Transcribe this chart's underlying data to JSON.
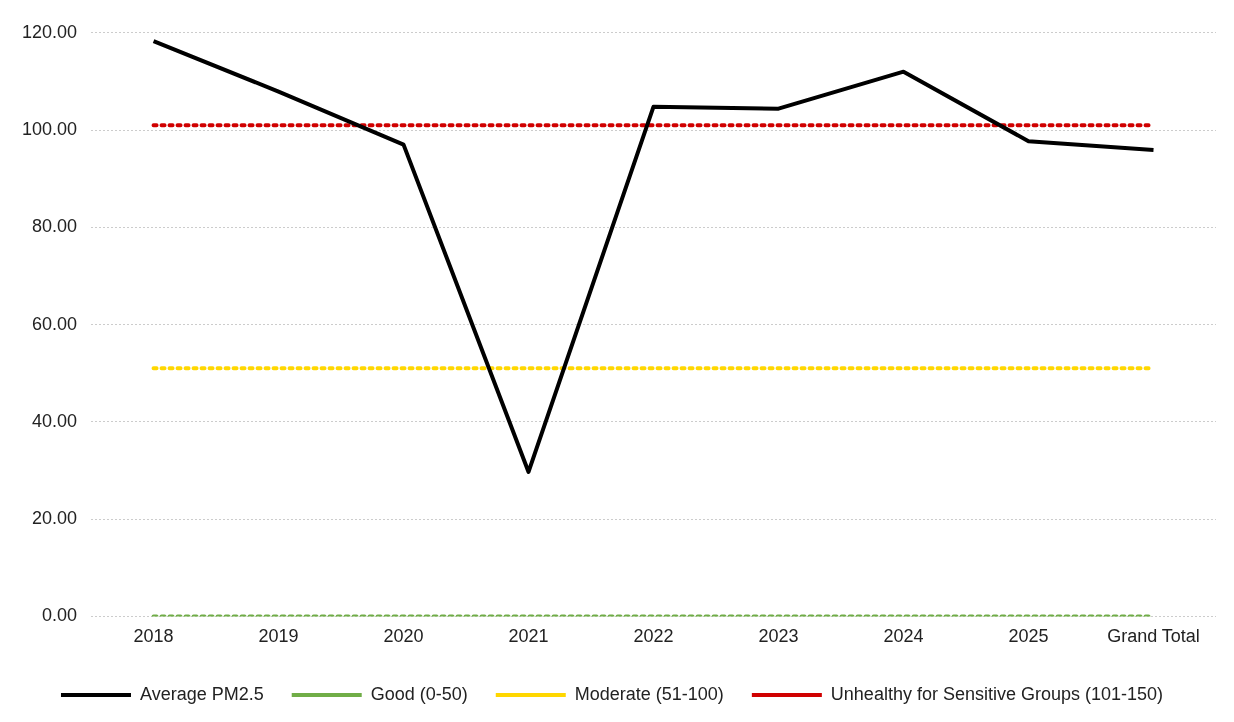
{
  "chart_data": {
    "type": "line",
    "categories": [
      "2018",
      "2019",
      "2020",
      "2021",
      "2022",
      "2023",
      "2024",
      "2025",
      "Grand Total"
    ],
    "series": [
      {
        "name": "Average PM2.5",
        "color": "#000000",
        "line_style": "solid",
        "values": [
          118.3,
          107.9,
          97.0,
          29.7,
          104.8,
          104.4,
          112.0,
          97.7,
          95.9
        ]
      },
      {
        "name": "Good (0-50)",
        "color": "#70ad47",
        "line_style": "dotted",
        "values": [
          0,
          0,
          0,
          0,
          0,
          0,
          0,
          0,
          0
        ]
      },
      {
        "name": "Moderate (51-100)",
        "color": "#ffd700",
        "line_style": "dotted",
        "values": [
          51,
          51,
          51,
          51,
          51,
          51,
          51,
          51,
          51
        ]
      },
      {
        "name": "Unhealthy for Sensitive Groups (101-150)",
        "color": "#d00000",
        "line_style": "dotted",
        "values": [
          101,
          101,
          101,
          101,
          101,
          101,
          101,
          101,
          101
        ]
      }
    ],
    "ylim": [
      0,
      120
    ],
    "yticks": [
      {
        "value": 0,
        "label": "0.00"
      },
      {
        "value": 20,
        "label": "20.00"
      },
      {
        "value": 40,
        "label": "40.00"
      },
      {
        "value": 60,
        "label": "60.00"
      },
      {
        "value": 80,
        "label": "80.00"
      },
      {
        "value": 100,
        "label": "100.00"
      },
      {
        "value": 120,
        "label": "120.00"
      }
    ],
    "grid": "y",
    "legend": "bottom",
    "marker": "none"
  }
}
